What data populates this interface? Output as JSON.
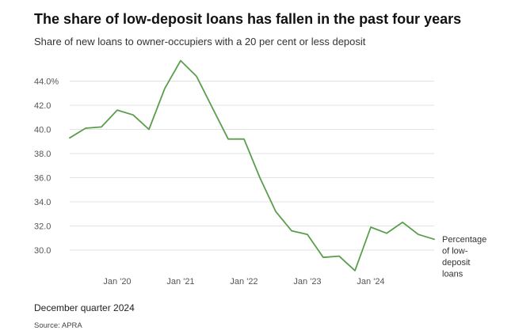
{
  "chart_data": {
    "type": "line",
    "title": "The share of low-deposit loans has fallen in the past four years",
    "subtitle": "Share of new loans to owner-occupiers with a 20 per cent or less deposit",
    "footnote": "December quarter 2024",
    "source": "Source: APRA",
    "x_tick_labels": [
      "Jan '20",
      "Jan '21",
      "Jan '22",
      "Jan '23",
      "Jan '24"
    ],
    "y_tick_labels": [
      "30.0",
      "32.0",
      "34.0",
      "36.0",
      "38.0",
      "40.0",
      "42.0",
      "44.0%"
    ],
    "y_ticks": [
      30,
      32,
      34,
      36,
      38,
      40,
      42,
      44
    ],
    "ylim": [
      28.5,
      46.2
    ],
    "x": [
      "Mar 2019",
      "Jun 2019",
      "Sep 2019",
      "Dec 2019",
      "Mar 2020",
      "Jun 2020",
      "Sep 2020",
      "Dec 2020",
      "Mar 2021",
      "Jun 2021",
      "Sep 2021",
      "Dec 2021",
      "Mar 2022",
      "Jun 2022",
      "Sep 2022",
      "Dec 2022",
      "Mar 2023",
      "Jun 2023",
      "Sep 2023",
      "Dec 2023",
      "Mar 2024",
      "Jun 2024",
      "Sep 2024",
      "Dec 2024"
    ],
    "grid": true,
    "color": "#5a9e4b",
    "series": [
      {
        "name": "Percentage of low-deposit loans",
        "label_lines": [
          "Percentage",
          "of low-",
          "deposit",
          "loans"
        ],
        "values": [
          39.3,
          40.1,
          40.2,
          41.6,
          41.2,
          40.0,
          43.4,
          45.7,
          44.4,
          41.8,
          39.2,
          39.2,
          36.0,
          33.2,
          31.6,
          31.3,
          29.4,
          29.5,
          28.3,
          31.9,
          31.4,
          32.3,
          31.3,
          30.9
        ]
      }
    ]
  }
}
